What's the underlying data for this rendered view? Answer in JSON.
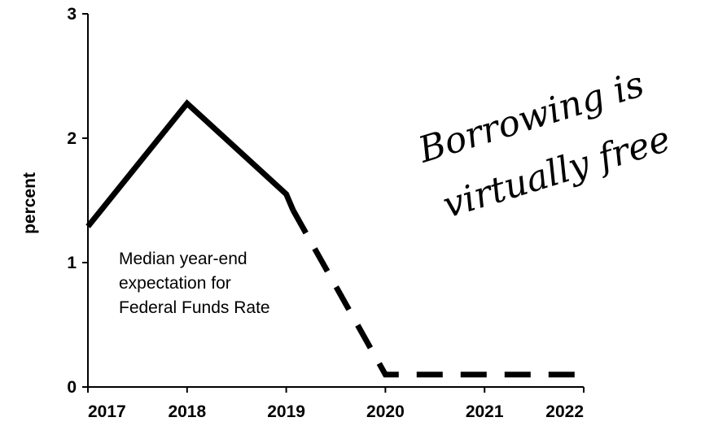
{
  "chart_data": {
    "type": "line",
    "title": "",
    "xlabel": "",
    "ylabel": "percent",
    "x": [
      2017,
      2018,
      2019,
      2020,
      2021,
      2022
    ],
    "xlim": [
      2017,
      2022
    ],
    "ylim": [
      0,
      3
    ],
    "x_ticks": [
      "2017",
      "2018",
      "2019",
      "2020",
      "2021",
      "2022"
    ],
    "y_ticks": [
      "0",
      "1",
      "2",
      "3"
    ],
    "grid": false,
    "series": [
      {
        "style": "solid",
        "points": [
          [
            2017.0,
            1.29
          ],
          [
            2018.0,
            2.28
          ],
          [
            2019.0,
            1.55
          ],
          [
            2019.07,
            1.42
          ]
        ]
      },
      {
        "style": "dashed",
        "points": [
          [
            2019.07,
            1.42
          ],
          [
            2020.0,
            0.1
          ],
          [
            2022.0,
            0.1
          ]
        ]
      }
    ],
    "annotation": [
      "Median year-end",
      "expectation for",
      "Federal Funds Rate"
    ],
    "handwritten_note": [
      "Borrowing is",
      "virtually free"
    ]
  }
}
